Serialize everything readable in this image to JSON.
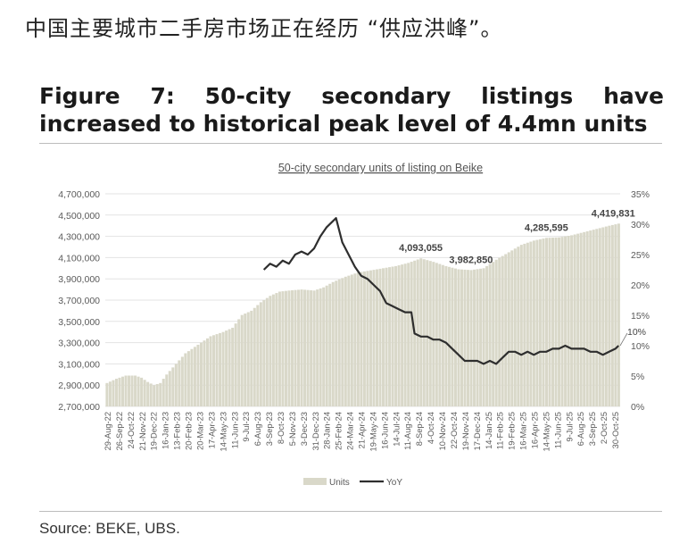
{
  "page": {
    "headline": "中国主要城市二手房市场正在经历 “供应洪峰”。",
    "figure_title": "Figure 7: 50-city secondary listings have increased to historical peak level of 4.4mn units",
    "source": "Source: BEKE, UBS."
  },
  "chart_data": {
    "type": "bar",
    "title": "50-city secondary units of listing on Beike",
    "xlabel": "",
    "ylabel": "",
    "ylim": [
      2700000,
      4700000
    ],
    "y2lim": [
      0,
      35
    ],
    "y_ticks": [
      "4,700,000",
      "4,500,000",
      "4,300,000",
      "4,100,000",
      "3,900,000",
      "3,700,000",
      "3,500,000",
      "3,300,000",
      "3,100,000",
      "2,900,000",
      "2,700,000"
    ],
    "y2_ticks": [
      "35%",
      "30%",
      "25%",
      "20%",
      "15%",
      "10%",
      "5%",
      "0%"
    ],
    "x_ticks": [
      "29-Aug-22",
      "26-Sep-22",
      "24-Oct-22",
      "21-Nov-22",
      "19-Dec-22",
      "16-Jan-23",
      "13-Feb-23",
      "20-Feb-23",
      "20-Mar-23",
      "17-Apr-23",
      "14-May-23",
      "11-Jun-23",
      "9-Jul-23",
      "6-Aug-23",
      "3-Sep-23",
      "8-Oct-23",
      "5-Nov-23",
      "3-Dec-23",
      "31-Dec-23",
      "28-Jan-24",
      "25-Feb-24",
      "24-Mar-24",
      "21-Apr-24",
      "19-May-24",
      "16-Jun-24",
      "14-Jul-24",
      "11-Aug-24",
      "8-Sep-24",
      "4-Oct-24",
      "10-Nov-24",
      "22-Oct-24",
      "19-Nov-24",
      "17-Dec-24",
      "14-Jan-25",
      "11-Feb-25",
      "19-Feb-25",
      "16-Mar-25",
      "16-Apr-25",
      "14-May-25",
      "11-Jun-25",
      "9-Jul-25",
      "6-Aug-25",
      "3-Sep-25",
      "2-Oct-25",
      "30-Oct-25"
    ],
    "legend": [
      "Units",
      "YoY"
    ],
    "legend_position": "bottom",
    "units_series": {
      "name": "Units",
      "anchors": [
        [
          0,
          2920000
        ],
        [
          3,
          2960000
        ],
        [
          6,
          2990000
        ],
        [
          9,
          2990000
        ],
        [
          11,
          2970000
        ],
        [
          13,
          2930000
        ],
        [
          15,
          2900000
        ],
        [
          17,
          2920000
        ],
        [
          19,
          3000000
        ],
        [
          22,
          3100000
        ],
        [
          25,
          3200000
        ],
        [
          29,
          3280000
        ],
        [
          33,
          3360000
        ],
        [
          37,
          3400000
        ],
        [
          40,
          3440000
        ],
        [
          43,
          3560000
        ],
        [
          46,
          3600000
        ],
        [
          49,
          3680000
        ],
        [
          52,
          3740000
        ],
        [
          55,
          3780000
        ],
        [
          58,
          3790000
        ],
        [
          62,
          3800000
        ],
        [
          66,
          3790000
        ],
        [
          69,
          3820000
        ],
        [
          72,
          3870000
        ],
        [
          76,
          3920000
        ],
        [
          80,
          3960000
        ],
        [
          84,
          3980000
        ],
        [
          88,
          4000000
        ],
        [
          92,
          4020000
        ],
        [
          96,
          4050000
        ],
        [
          100,
          4093055
        ],
        [
          104,
          4060000
        ],
        [
          108,
          4020000
        ],
        [
          112,
          3990000
        ],
        [
          116,
          3982850
        ],
        [
          120,
          4000000
        ],
        [
          124,
          4080000
        ],
        [
          128,
          4150000
        ],
        [
          132,
          4220000
        ],
        [
          136,
          4260000
        ],
        [
          140,
          4285595
        ],
        [
          144,
          4290000
        ],
        [
          148,
          4310000
        ],
        [
          152,
          4340000
        ],
        [
          156,
          4370000
        ],
        [
          160,
          4400000
        ],
        [
          163,
          4419831
        ]
      ],
      "count": 164
    },
    "yoy_series": {
      "name": "YoY",
      "points": [
        [
          50,
          22.5
        ],
        [
          52,
          23.5
        ],
        [
          54,
          23
        ],
        [
          56,
          24
        ],
        [
          58,
          23.5
        ],
        [
          60,
          25
        ],
        [
          62,
          25.5
        ],
        [
          64,
          25
        ],
        [
          66,
          26
        ],
        [
          68,
          28
        ],
        [
          70,
          29.5
        ],
        [
          72,
          30.5
        ],
        [
          73,
          31
        ],
        [
          74,
          29
        ],
        [
          75,
          27
        ],
        [
          77,
          25
        ],
        [
          79,
          23
        ],
        [
          81,
          21.5
        ],
        [
          83,
          21
        ],
        [
          85,
          20
        ],
        [
          87,
          19
        ],
        [
          88,
          18
        ],
        [
          89,
          17
        ],
        [
          91,
          16.5
        ],
        [
          93,
          16
        ],
        [
          95,
          15.5
        ],
        [
          97,
          15.5
        ],
        [
          98,
          12
        ],
        [
          100,
          11.5
        ],
        [
          102,
          11.5
        ],
        [
          104,
          11
        ],
        [
          106,
          11
        ],
        [
          108,
          10.5
        ],
        [
          110,
          9.5
        ],
        [
          112,
          8.5
        ],
        [
          114,
          7.5
        ],
        [
          116,
          7.5
        ],
        [
          118,
          7.5
        ],
        [
          120,
          7
        ],
        [
          122,
          7.5
        ],
        [
          124,
          7
        ],
        [
          126,
          8
        ],
        [
          128,
          9
        ],
        [
          130,
          9
        ],
        [
          132,
          8.5
        ],
        [
          134,
          9
        ],
        [
          136,
          8.5
        ],
        [
          138,
          9
        ],
        [
          140,
          9
        ],
        [
          142,
          9.5
        ],
        [
          144,
          9.5
        ],
        [
          146,
          10
        ],
        [
          148,
          9.5
        ],
        [
          150,
          9.5
        ],
        [
          152,
          9.5
        ],
        [
          154,
          9
        ],
        [
          156,
          9
        ],
        [
          158,
          8.5
        ],
        [
          160,
          9
        ],
        [
          162,
          9.5
        ],
        [
          163,
          10
        ]
      ]
    },
    "annotations": [
      "4,093,055",
      "3,982,850",
      "4,285,595",
      "4,419,831",
      "10%"
    ],
    "colors": {
      "bars": "#d9d8c9",
      "bars_stroke": "#c9c8b6",
      "line": "#2e2e2e",
      "text": "#5a5a5a",
      "grid": "#e3e3e3"
    }
  }
}
